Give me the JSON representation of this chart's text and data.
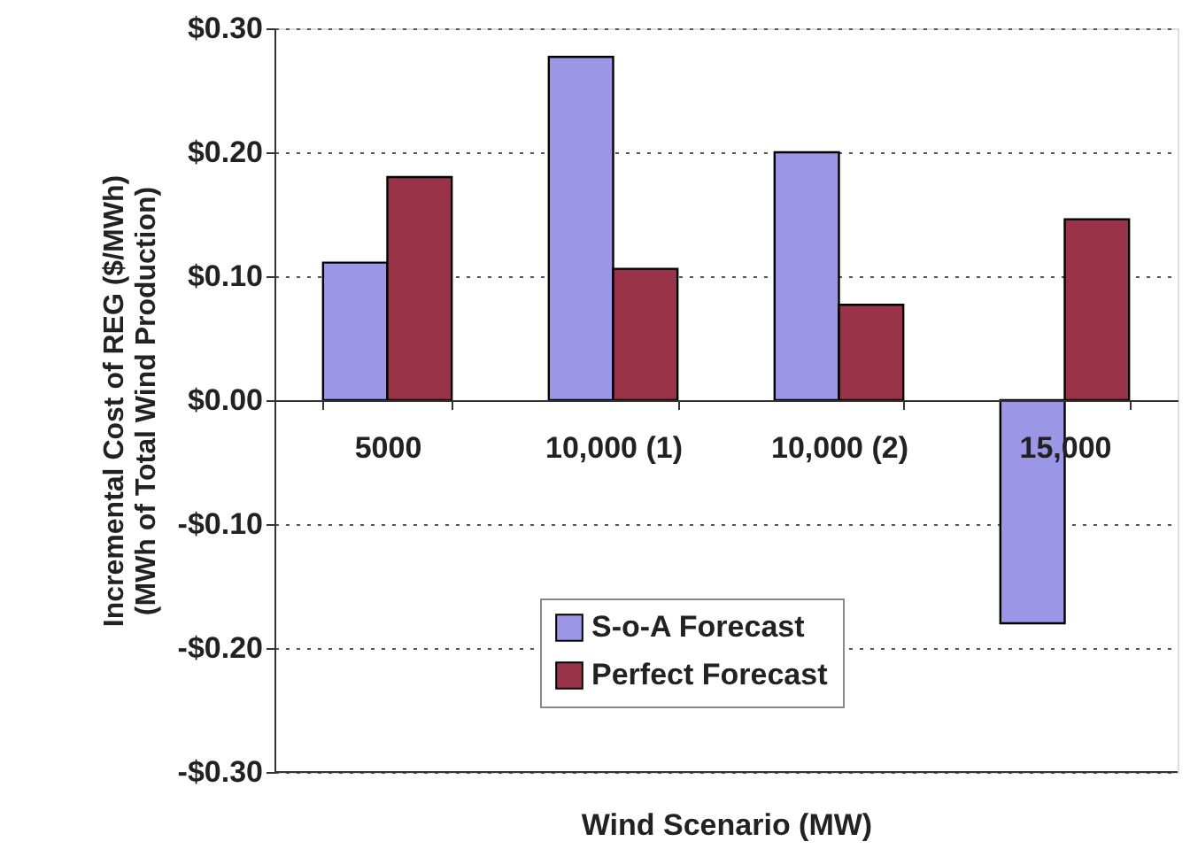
{
  "chart_data": {
    "type": "bar",
    "xlabel": "Wind Scenario (MW)",
    "ylabel": "Incremental Cost of REG ($/MWh)\n(MWh of Total Wind Production)",
    "categories": [
      "5000",
      "10,000 (1)",
      "10,000 (2)",
      "15,000"
    ],
    "series": [
      {
        "name": "S-o-A Forecast",
        "color": "#9b96e6",
        "values": [
          0.111,
          0.277,
          0.2,
          -0.18
        ]
      },
      {
        "name": "Perfect Forecast",
        "color": "#993348",
        "values": [
          0.18,
          0.106,
          0.077,
          0.146
        ]
      }
    ],
    "ylim": [
      -0.3,
      0.3
    ],
    "yticks": [
      {
        "value": -0.3,
        "label": "-$0.30"
      },
      {
        "value": -0.2,
        "label": "-$0.20"
      },
      {
        "value": -0.1,
        "label": "-$0.10"
      },
      {
        "value": 0,
        "label": "$0.00"
      },
      {
        "value": 0.1,
        "label": "$0.10"
      },
      {
        "value": 0.2,
        "label": "$0.20"
      },
      {
        "value": 0.3,
        "label": "$0.30"
      }
    ],
    "grid": "y",
    "legend": "bottom left"
  }
}
